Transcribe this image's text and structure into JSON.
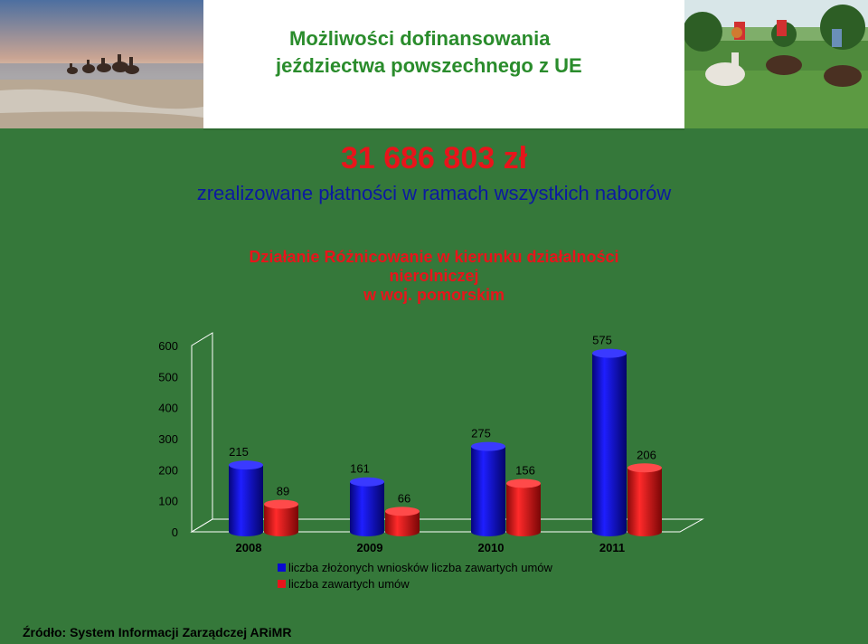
{
  "header": {
    "title_line1": "Możliwości dofinansowania",
    "title_line2": "jeździectwa powszechnego z UE"
  },
  "summary": {
    "amount": "31 686 803 zł",
    "description": "zrealizowane płatności w ramach wszystkich naborów"
  },
  "chart_data": {
    "type": "bar",
    "title_lines": [
      "Działanie Różnicowanie w kierunku działalności",
      "nierolniczej",
      "w woj. pomorskim"
    ],
    "categories": [
      "2008",
      "2009",
      "2010",
      "2011"
    ],
    "series": [
      {
        "name": "liczba złożonych wniosków liczba zawartych umów",
        "color": "#0a0ad2",
        "values": [
          215,
          161,
          275,
          575
        ]
      },
      {
        "name": "liczba zawartych umów",
        "color": "#e8141b",
        "values": [
          89,
          66,
          156,
          206
        ]
      }
    ],
    "ylim": [
      0,
      600
    ],
    "yticks": [
      0,
      100,
      200,
      300,
      400,
      500,
      600
    ],
    "grid": false,
    "legend": "bottom",
    "style": "3d-cylinder"
  },
  "footer": {
    "source": "Źródło: System Informacji Zarządczej ARiMR"
  },
  "colors": {
    "background": "#35783a",
    "title_green": "#2a8c2c",
    "accent_red": "#e8141b",
    "subtitle_blue": "#0c1aa0"
  }
}
